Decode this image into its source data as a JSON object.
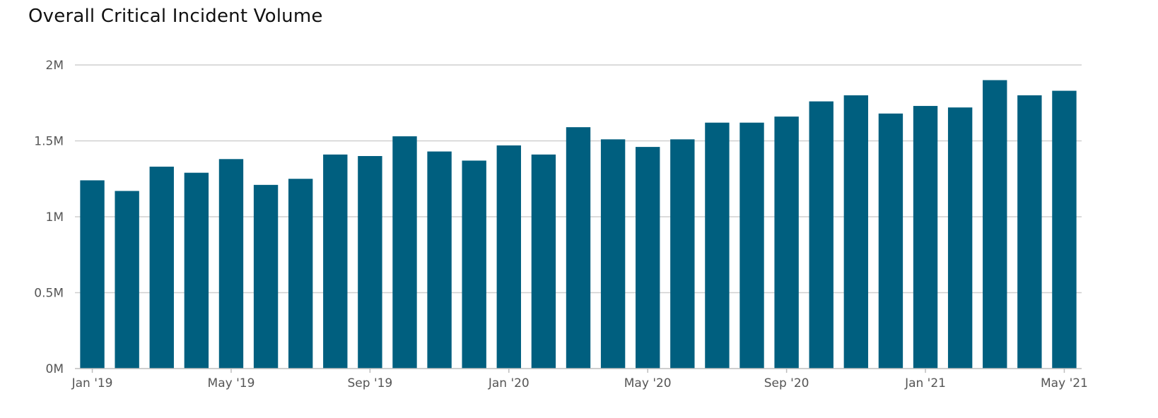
{
  "chart_data": {
    "type": "bar",
    "title": "Overall Critical Incident Volume",
    "xlabel": "",
    "ylabel": "",
    "ylim": [
      0,
      2000000
    ],
    "y_ticks": [
      {
        "value": 0,
        "label": "0M"
      },
      {
        "value": 500000,
        "label": "0.5M"
      },
      {
        "value": 1000000,
        "label": "1M"
      },
      {
        "value": 1500000,
        "label": "1.5M"
      },
      {
        "value": 2000000,
        "label": "2M"
      }
    ],
    "x_tick_labels": [
      {
        "index": 0,
        "label": "Jan '19"
      },
      {
        "index": 4,
        "label": "May '19"
      },
      {
        "index": 8,
        "label": "Sep '19"
      },
      {
        "index": 12,
        "label": "Jan '20"
      },
      {
        "index": 16,
        "label": "May '20"
      },
      {
        "index": 20,
        "label": "Sep '20"
      },
      {
        "index": 24,
        "label": "Jan '21"
      },
      {
        "index": 28,
        "label": "May '21"
      }
    ],
    "categories": [
      "2019-01",
      "2019-02",
      "2019-03",
      "2019-04",
      "2019-05",
      "2019-06",
      "2019-07",
      "2019-08",
      "2019-09",
      "2019-10",
      "2019-11",
      "2019-12",
      "2020-01",
      "2020-02",
      "2020-03",
      "2020-04",
      "2020-05",
      "2020-06",
      "2020-07",
      "2020-08",
      "2020-09",
      "2020-10",
      "2020-11",
      "2020-12",
      "2021-01",
      "2021-02",
      "2021-03",
      "2021-04",
      "2021-05"
    ],
    "values": [
      1240000,
      1170000,
      1330000,
      1290000,
      1380000,
      1210000,
      1250000,
      1410000,
      1400000,
      1530000,
      1430000,
      1370000,
      1470000,
      1410000,
      1590000,
      1510000,
      1460000,
      1510000,
      1620000,
      1620000,
      1660000,
      1760000,
      1800000,
      1680000,
      1730000,
      1720000,
      1900000,
      1800000,
      1830000
    ],
    "bar_color": "#005f7f",
    "grid": true,
    "legend": "none"
  }
}
